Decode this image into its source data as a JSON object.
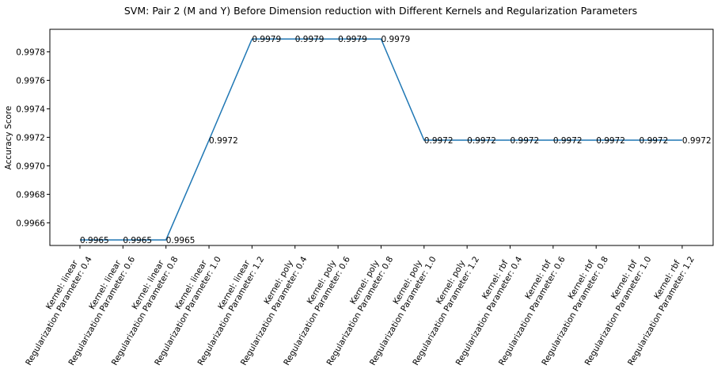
{
  "chart_data": {
    "type": "line",
    "title": "SVM: Pair 2 (M and Y) Before Dimension reduction with Different Kernels and Regularization Parameters",
    "xlabel": "",
    "ylabel": "Accuracy Score",
    "categories": [
      [
        "Kernel: linear",
        "Regularization Parameter: 0.4"
      ],
      [
        "Kernel: linear",
        "Regularization Parameter: 0.6"
      ],
      [
        "Kernel: linear",
        "Regularization Parameter: 0.8"
      ],
      [
        "Kernel: linear",
        "Regularization Parameter: 1.0"
      ],
      [
        "Kernel: linear",
        "Regularization Parameter: 1.2"
      ],
      [
        "Kernel: poly",
        "Regularization Parameter: 0.4"
      ],
      [
        "Kernel: poly",
        "Regularization Parameter: 0.6"
      ],
      [
        "Kernel: poly",
        "Regularization Parameter: 0.8"
      ],
      [
        "Kernel: poly",
        "Regularization Parameter: 1.0"
      ],
      [
        "Kernel: poly",
        "Regularization Parameter: 1.2"
      ],
      [
        "Kernel: rbf",
        "Regularization Parameter: 0.4"
      ],
      [
        "Kernel: rbf",
        "Regularization Parameter: 0.6"
      ],
      [
        "Kernel: rbf",
        "Regularization Parameter: 0.8"
      ],
      [
        "Kernel: rbf",
        "Regularization Parameter: 1.0"
      ],
      [
        "Kernel: rbf",
        "Regularization Parameter: 1.2"
      ]
    ],
    "values": [
      0.99648,
      0.99648,
      0.99648,
      0.99718,
      0.99789,
      0.99789,
      0.99789,
      0.99789,
      0.99718,
      0.99718,
      0.99718,
      0.99718,
      0.99718,
      0.99718,
      0.99718
    ],
    "data_labels": [
      "0.9965",
      "0.9965",
      "0.9965",
      "0.9972",
      "0.9979",
      "0.9979",
      "0.9979",
      "0.9979",
      "0.9972",
      "0.9972",
      "0.9972",
      "0.9972",
      "0.9972",
      "0.9972",
      "0.9972"
    ],
    "yticks": [
      0.9966,
      0.9968,
      0.997,
      0.9972,
      0.9974,
      0.9976,
      0.9978
    ],
    "ytick_labels": [
      "0.9966",
      "0.9968",
      "0.9970",
      "0.9972",
      "0.9974",
      "0.9976",
      "0.9978"
    ],
    "ylim": [
      0.996441,
      0.997958
    ],
    "grid": false,
    "line_color": "#1f77b4"
  }
}
